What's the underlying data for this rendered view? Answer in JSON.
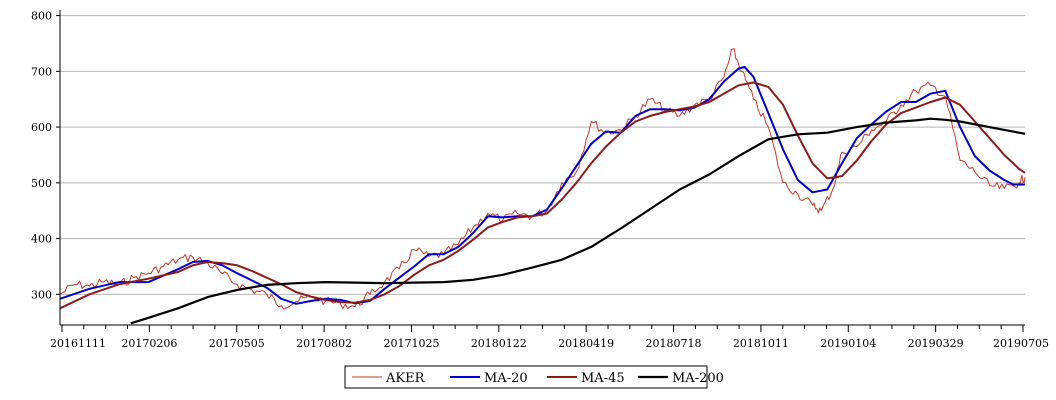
{
  "chart_data": {
    "type": "line",
    "title": "",
    "xlabel": "",
    "ylabel": "",
    "xlim": [
      "20161111",
      "20190705"
    ],
    "ylim": [
      245,
      810
    ],
    "grid": "horizontal",
    "legend_placement": "bottom-center",
    "y_ticks": [
      300,
      400,
      500,
      600,
      700,
      800
    ],
    "x_tick_labels": [
      "20161111",
      "20170206",
      "20170505",
      "20170802",
      "20171025",
      "20180122",
      "20180419",
      "20180718",
      "20181011",
      "20190104",
      "20190329",
      "20190705"
    ],
    "series": [
      {
        "name": "AKER",
        "color": "#c0392b",
        "points": [
          [
            0,
            300
          ],
          [
            5,
            318
          ],
          [
            10,
            315
          ],
          [
            15,
            323
          ],
          [
            20,
            317
          ],
          [
            25,
            330
          ],
          [
            30,
            338
          ],
          [
            35,
            350
          ],
          [
            40,
            362
          ],
          [
            45,
            367
          ],
          [
            50,
            356
          ],
          [
            55,
            337
          ],
          [
            60,
            318
          ],
          [
            65,
            308
          ],
          [
            70,
            300
          ],
          [
            75,
            280
          ],
          [
            80,
            287
          ],
          [
            85,
            295
          ],
          [
            90,
            288
          ],
          [
            95,
            283
          ],
          [
            100,
            278
          ],
          [
            105,
            300
          ],
          [
            110,
            322
          ],
          [
            115,
            346
          ],
          [
            120,
            380
          ],
          [
            125,
            368
          ],
          [
            130,
            372
          ],
          [
            135,
            390
          ],
          [
            140,
            420
          ],
          [
            145,
            445
          ],
          [
            150,
            433
          ],
          [
            155,
            445
          ],
          [
            160,
            440
          ],
          [
            165,
            450
          ],
          [
            170,
            500
          ],
          [
            175,
            520
          ],
          [
            180,
            610
          ],
          [
            185,
            590
          ],
          [
            190,
            595
          ],
          [
            195,
            620
          ],
          [
            200,
            650
          ],
          [
            205,
            630
          ],
          [
            210,
            620
          ],
          [
            215,
            640
          ],
          [
            220,
            650
          ],
          [
            225,
            690
          ],
          [
            228,
            740
          ],
          [
            231,
            700
          ],
          [
            235,
            650
          ],
          [
            240,
            600
          ],
          [
            245,
            500
          ],
          [
            250,
            480
          ],
          [
            255,
            460
          ],
          [
            258,
            450
          ],
          [
            262,
            490
          ],
          [
            265,
            555
          ],
          [
            270,
            565
          ],
          [
            275,
            595
          ],
          [
            280,
            610
          ],
          [
            285,
            640
          ],
          [
            290,
            665
          ],
          [
            295,
            675
          ],
          [
            300,
            655
          ],
          [
            305,
            540
          ],
          [
            310,
            520
          ],
          [
            315,
            495
          ],
          [
            320,
            490
          ],
          [
            325,
            500
          ],
          [
            327,
            510
          ]
        ]
      },
      {
        "name": "MA-20",
        "color": "#0000cc",
        "points": [
          [
            0,
            292
          ],
          [
            10,
            310
          ],
          [
            20,
            322
          ],
          [
            30,
            322
          ],
          [
            40,
            345
          ],
          [
            45,
            358
          ],
          [
            50,
            360
          ],
          [
            55,
            352
          ],
          [
            60,
            338
          ],
          [
            65,
            325
          ],
          [
            70,
            312
          ],
          [
            75,
            292
          ],
          [
            80,
            283
          ],
          [
            85,
            288
          ],
          [
            90,
            292
          ],
          [
            95,
            290
          ],
          [
            100,
            284
          ],
          [
            105,
            288
          ],
          [
            110,
            310
          ],
          [
            115,
            330
          ],
          [
            120,
            350
          ],
          [
            125,
            372
          ],
          [
            130,
            372
          ],
          [
            135,
            385
          ],
          [
            140,
            410
          ],
          [
            145,
            440
          ],
          [
            150,
            438
          ],
          [
            155,
            440
          ],
          [
            160,
            440
          ],
          [
            165,
            452
          ],
          [
            170,
            490
          ],
          [
            175,
            530
          ],
          [
            180,
            570
          ],
          [
            185,
            592
          ],
          [
            190,
            590
          ],
          [
            195,
            620
          ],
          [
            200,
            632
          ],
          [
            205,
            632
          ],
          [
            210,
            630
          ],
          [
            215,
            635
          ],
          [
            220,
            650
          ],
          [
            225,
            682
          ],
          [
            230,
            705
          ],
          [
            232,
            708
          ],
          [
            235,
            690
          ],
          [
            240,
            625
          ],
          [
            245,
            560
          ],
          [
            250,
            505
          ],
          [
            255,
            483
          ],
          [
            260,
            488
          ],
          [
            265,
            535
          ],
          [
            270,
            580
          ],
          [
            275,
            605
          ],
          [
            280,
            628
          ],
          [
            285,
            645
          ],
          [
            290,
            645
          ],
          [
            295,
            660
          ],
          [
            300,
            665
          ],
          [
            305,
            600
          ],
          [
            310,
            548
          ],
          [
            315,
            522
          ],
          [
            320,
            505
          ],
          [
            323,
            497
          ],
          [
            327,
            497
          ]
        ]
      },
      {
        "name": "MA-45",
        "color": "#8b1a1a",
        "points": [
          [
            0,
            275
          ],
          [
            10,
            300
          ],
          [
            20,
            318
          ],
          [
            30,
            328
          ],
          [
            40,
            340
          ],
          [
            45,
            352
          ],
          [
            50,
            358
          ],
          [
            55,
            356
          ],
          [
            60,
            352
          ],
          [
            65,
            342
          ],
          [
            70,
            330
          ],
          [
            75,
            318
          ],
          [
            80,
            304
          ],
          [
            85,
            296
          ],
          [
            90,
            290
          ],
          [
            95,
            286
          ],
          [
            100,
            285
          ],
          [
            105,
            290
          ],
          [
            110,
            300
          ],
          [
            115,
            315
          ],
          [
            120,
            335
          ],
          [
            125,
            352
          ],
          [
            130,
            362
          ],
          [
            135,
            378
          ],
          [
            140,
            398
          ],
          [
            145,
            420
          ],
          [
            150,
            430
          ],
          [
            155,
            438
          ],
          [
            160,
            440
          ],
          [
            165,
            445
          ],
          [
            170,
            470
          ],
          [
            175,
            500
          ],
          [
            180,
            535
          ],
          [
            185,
            565
          ],
          [
            190,
            590
          ],
          [
            195,
            610
          ],
          [
            200,
            620
          ],
          [
            205,
            627
          ],
          [
            210,
            632
          ],
          [
            215,
            637
          ],
          [
            220,
            645
          ],
          [
            225,
            660
          ],
          [
            230,
            675
          ],
          [
            235,
            680
          ],
          [
            240,
            672
          ],
          [
            245,
            640
          ],
          [
            250,
            585
          ],
          [
            255,
            535
          ],
          [
            260,
            508
          ],
          [
            265,
            512
          ],
          [
            270,
            540
          ],
          [
            275,
            575
          ],
          [
            280,
            605
          ],
          [
            285,
            625
          ],
          [
            290,
            635
          ],
          [
            295,
            645
          ],
          [
            300,
            653
          ],
          [
            305,
            640
          ],
          [
            310,
            610
          ],
          [
            315,
            580
          ],
          [
            320,
            550
          ],
          [
            325,
            525
          ],
          [
            327,
            518
          ]
        ]
      },
      {
        "name": "MA-200",
        "color": "#000000",
        "points": [
          [
            24,
            248
          ],
          [
            30,
            258
          ],
          [
            40,
            275
          ],
          [
            50,
            295
          ],
          [
            60,
            308
          ],
          [
            70,
            317
          ],
          [
            80,
            320
          ],
          [
            90,
            322
          ],
          [
            100,
            321
          ],
          [
            110,
            320
          ],
          [
            120,
            321
          ],
          [
            130,
            322
          ],
          [
            140,
            326
          ],
          [
            150,
            335
          ],
          [
            160,
            348
          ],
          [
            170,
            362
          ],
          [
            180,
            385
          ],
          [
            190,
            418
          ],
          [
            200,
            453
          ],
          [
            210,
            488
          ],
          [
            220,
            515
          ],
          [
            230,
            548
          ],
          [
            240,
            578
          ],
          [
            250,
            587
          ],
          [
            260,
            590
          ],
          [
            270,
            600
          ],
          [
            280,
            608
          ],
          [
            290,
            612
          ],
          [
            295,
            615
          ],
          [
            300,
            613
          ],
          [
            305,
            610
          ],
          [
            310,
            605
          ],
          [
            320,
            595
          ],
          [
            327,
            588
          ]
        ]
      }
    ]
  }
}
